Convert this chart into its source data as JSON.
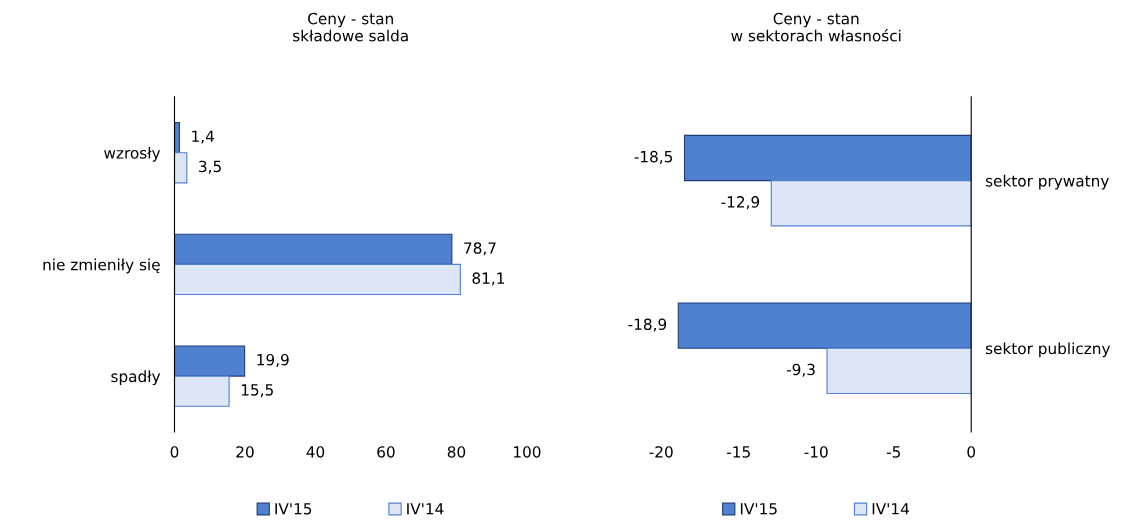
{
  "chart_data": [
    {
      "type": "bar",
      "orientation": "horizontal",
      "title": "Ceny - stan\nskładowe salda",
      "categories": [
        "wzrosły",
        "nie zmieniły się",
        "spadły"
      ],
      "series": [
        {
          "name": "IV'15",
          "color": "#4f81d0",
          "values": [
            1.4,
            78.7,
            19.9
          ],
          "value_labels": [
            "1,4",
            "78,7",
            "19,9"
          ]
        },
        {
          "name": "IV'14",
          "color": "#dce6f6",
          "values": [
            3.5,
            81.1,
            15.5
          ],
          "value_labels": [
            "3,5",
            "81,1",
            "15,5"
          ]
        }
      ],
      "xlim": [
        0,
        100
      ],
      "xticks": [
        0,
        20,
        40,
        60,
        80,
        100
      ],
      "legend": "bottom",
      "grid": false
    },
    {
      "type": "bar",
      "orientation": "horizontal",
      "title": "Ceny - stan\nw sektorach własności",
      "categories": [
        "sektor prywatny",
        "sektor publiczny"
      ],
      "series": [
        {
          "name": "IV'15",
          "color": "#4f81d0",
          "values": [
            -18.5,
            -18.9
          ],
          "value_labels": [
            "-18,5",
            "-18,9"
          ]
        },
        {
          "name": "IV'14",
          "color": "#dce6f6",
          "values": [
            -12.9,
            -9.3
          ],
          "value_labels": [
            "-12,9",
            "-9,3"
          ]
        }
      ],
      "xlim": [
        -20,
        0
      ],
      "xticks": [
        -20,
        -15,
        -10,
        -5,
        0
      ],
      "legend": "bottom",
      "grid": false
    }
  ]
}
